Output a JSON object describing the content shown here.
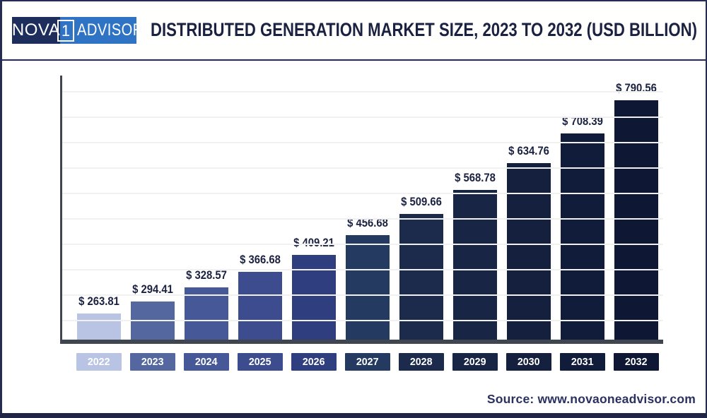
{
  "header": {
    "logo": {
      "part_nova": "NOVA",
      "part_one": "1",
      "part_advisor": "ADVISOR"
    },
    "title": "DISTRIBUTED GENERATION MARKET SIZE, 2023 TO 2032 (USD BILLION)"
  },
  "chart_data": {
    "type": "bar",
    "title": "Distributed Generation Market Size, 2023 to 2032 (USD Billion)",
    "categories": [
      "2022",
      "2023",
      "2024",
      "2025",
      "2026",
      "2027",
      "2028",
      "2029",
      "2030",
      "2031",
      "2032"
    ],
    "values": [
      263.81,
      294.41,
      328.57,
      366.68,
      409.21,
      456.68,
      509.66,
      568.78,
      634.76,
      708.39,
      790.56
    ],
    "currency_prefix": "$ ",
    "unit": "USD Billion",
    "xlabel": "",
    "ylabel": "",
    "ylim": [
      200,
      849
    ],
    "grid": true,
    "gridline_count": 10,
    "legend": "none",
    "bar_colors": [
      "#b9c4e4",
      "#55679f",
      "#475898",
      "#3c4c8e",
      "#2f3e7e",
      "#253a60",
      "#1c2a4c",
      "#182544",
      "#14203e",
      "#111c3a",
      "#0e1834"
    ]
  },
  "footer": {
    "source": "Source: www.novaoneadvisor.com"
  },
  "colors": {
    "frame_border": "#252b52",
    "bottom_bar": "#1e2547",
    "logo_dark": "#1d2d5c",
    "logo_light": "#2e73c4",
    "title_text": "#1b2140",
    "axis": "#40464f",
    "gridline": "#f1f1f1",
    "value_label_text": "#1b2140",
    "source_text": "#2a3060"
  }
}
